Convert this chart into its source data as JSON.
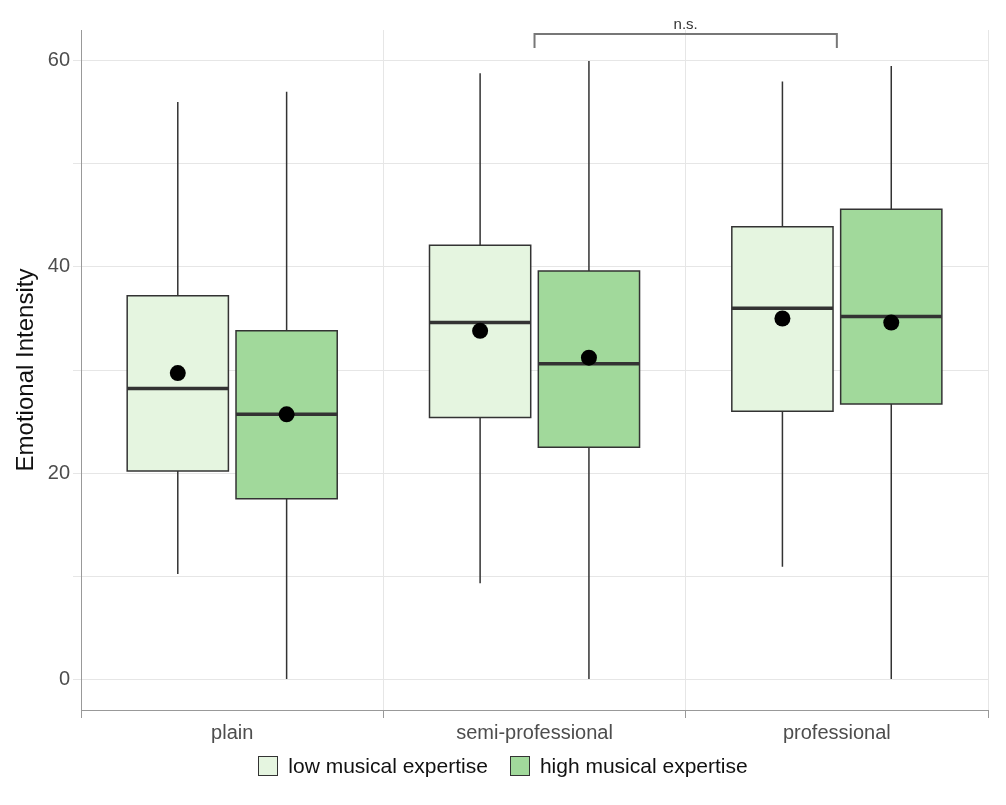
{
  "chart_data": {
    "type": "box",
    "ylabel": "Emotional Intensity",
    "categories": [
      "plain",
      "semi-professional",
      "professional"
    ],
    "series": [
      {
        "name": "low musical expertise",
        "color": "#e5f5e0",
        "boxes": [
          {
            "low": 10.2,
            "q1": 20.2,
            "median": 28.2,
            "q3": 37.2,
            "high": 56,
            "mean": 29.7
          },
          {
            "low": 9.3,
            "q1": 25.4,
            "median": 34.6,
            "q3": 42.1,
            "high": 58.8,
            "mean": 33.8
          },
          {
            "low": 10.9,
            "q1": 26,
            "median": 36,
            "q3": 43.9,
            "high": 58,
            "mean": 35
          }
        ]
      },
      {
        "name": "high musical expertise",
        "color": "#a1d99b",
        "boxes": [
          {
            "low": 0,
            "q1": 17.5,
            "median": 25.7,
            "q3": 33.8,
            "high": 57,
            "mean": 25.7
          },
          {
            "low": 0,
            "q1": 22.5,
            "median": 30.6,
            "q3": 39.6,
            "high": 60,
            "mean": 31.2
          },
          {
            "low": 0,
            "q1": 26.7,
            "median": 35.2,
            "q3": 45.6,
            "high": 59.5,
            "mean": 34.6
          }
        ]
      }
    ],
    "ylim": [
      -3,
      63
    ],
    "yticks": [
      0,
      {
        "value": 10,
        "label": null
      },
      20,
      {
        "value": 30,
        "label": null
      },
      40,
      {
        "value": 50,
        "label": null
      },
      60
    ],
    "grid": true,
    "legend": "bottom",
    "annotations": [
      "n.s."
    ]
  }
}
